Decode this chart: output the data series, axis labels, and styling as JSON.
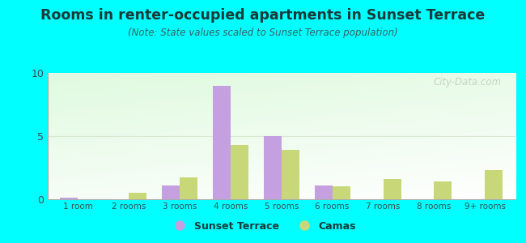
{
  "title": "Rooms in renter-occupied apartments in Sunset Terrace",
  "subtitle": "(Note: State values scaled to Sunset Terrace population)",
  "categories": [
    "1 room",
    "2 rooms",
    "3 rooms",
    "4 rooms",
    "5 rooms",
    "6 rooms",
    "7 rooms",
    "8 rooms",
    "9+ rooms"
  ],
  "sunset_terrace": [
    0.1,
    0.0,
    1.1,
    9.0,
    5.0,
    1.1,
    0.0,
    0.0,
    0.0
  ],
  "camas": [
    0.0,
    0.5,
    1.7,
    4.3,
    3.9,
    1.0,
    1.6,
    1.4,
    2.3
  ],
  "sunset_color": "#c4a0e0",
  "camas_color": "#c8d878",
  "bar_width": 0.35,
  "ylim": [
    0,
    10
  ],
  "yticks": [
    0,
    5,
    10
  ],
  "background_color": "#00ffff",
  "grid_color": "#d8e8d0",
  "title_color": "#1a3a3a",
  "subtitle_color": "#3a6060",
  "tick_color": "#3a5050",
  "watermark": "City-Data.com",
  "legend_sunset": "Sunset Terrace",
  "legend_camas": "Camas",
  "title_fontsize": 12.5,
  "subtitle_fontsize": 8.5
}
